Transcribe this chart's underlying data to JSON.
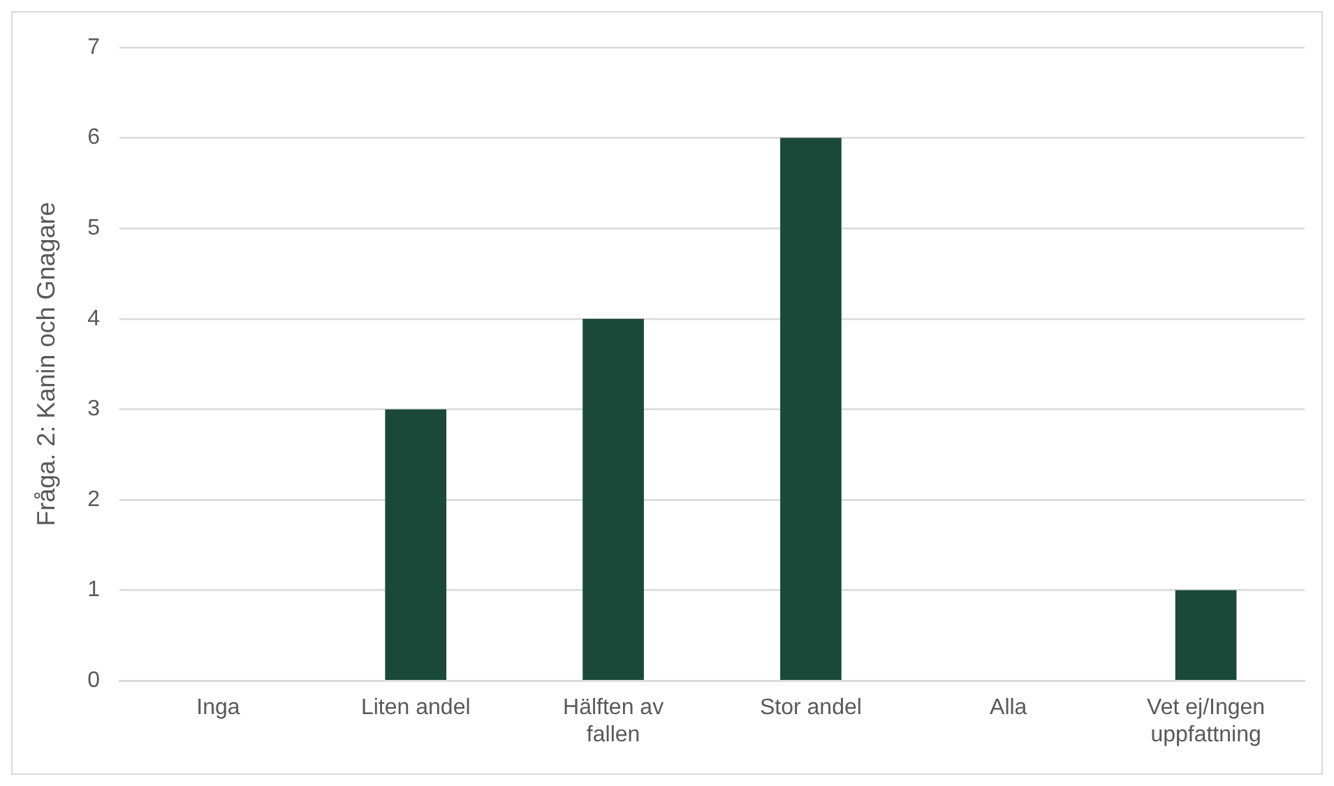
{
  "chart_data": {
    "type": "bar",
    "ylabel": "Fråga. 2: Kanin och Gnagare",
    "categories": [
      "Inga",
      "Liten andel",
      "Hälften av fallen",
      "Stor andel",
      "Alla",
      "Vet ej/Ingen uppfattning"
    ],
    "values": [
      0,
      3,
      4,
      6,
      0,
      1
    ],
    "color": "#1a4839",
    "ylim": [
      0,
      7
    ],
    "yticks": [
      0,
      1,
      2,
      3,
      4,
      5,
      6,
      7
    ],
    "grid": "y"
  }
}
